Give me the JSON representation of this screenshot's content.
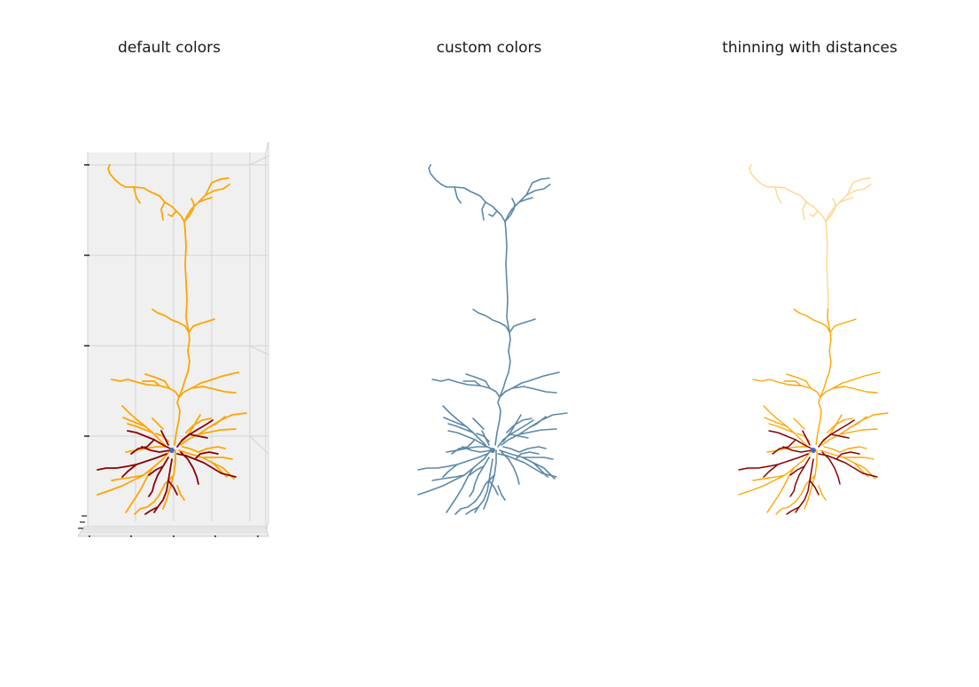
{
  "figure": {
    "panels": [
      {
        "title": "default colors",
        "apical_color": "#FFA500",
        "basal_color": "#8B0000",
        "soma_color": "#4466CC",
        "axes_visible": true
      },
      {
        "title": "custom colors",
        "color": "#5B88A8",
        "axes_visible": false
      },
      {
        "title": "thinning with distances",
        "apical_color": "#FFA500",
        "basal_color": "#8B0000",
        "soma_color": "#4466CC",
        "axes_visible": false,
        "line_width_scales_with_distance": true
      }
    ]
  }
}
